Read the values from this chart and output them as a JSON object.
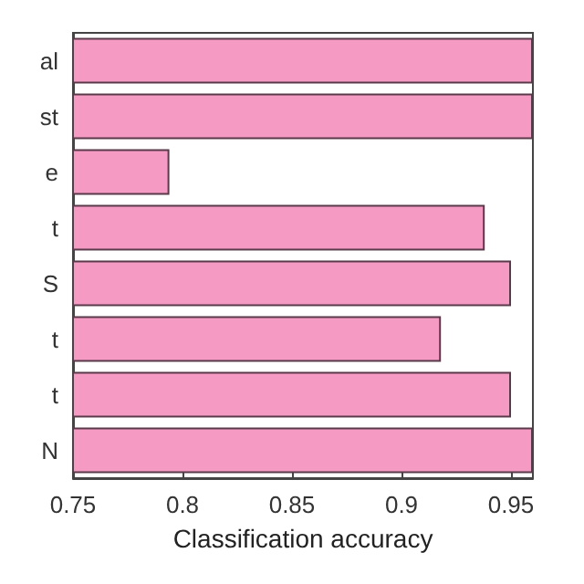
{
  "chart_data": {
    "type": "bar",
    "orientation": "horizontal",
    "xlabel": "Classification accuracy",
    "categories": [
      "al",
      "st",
      "e",
      "t",
      "S",
      "t",
      "t",
      "N"
    ],
    "values": [
      0.96,
      0.96,
      0.794,
      0.938,
      0.95,
      0.918,
      0.95,
      0.96
    ],
    "color": "#f59ac3",
    "xlim": [
      0.75,
      0.96
    ],
    "xticks": [
      0.75,
      0.8,
      0.85,
      0.9,
      0.95
    ],
    "grid": false
  }
}
